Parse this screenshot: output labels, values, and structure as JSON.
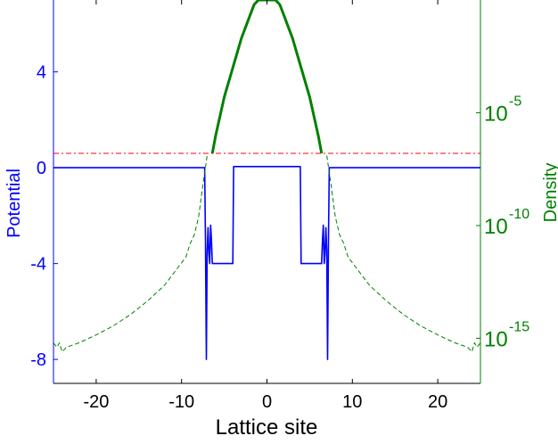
{
  "chart_data": {
    "type": "line",
    "xlabel": "Lattice site",
    "ylabel_left": "Potential",
    "ylabel_right": "Density",
    "xlim": [
      -25,
      25
    ],
    "ylim_left": [
      -9,
      7
    ],
    "ylim_right_log10": [
      -17,
      0
    ],
    "x_ticks": [
      -20,
      -10,
      0,
      10,
      20
    ],
    "x_tick_labels": [
      "-20",
      "-10",
      "0",
      "10",
      "20"
    ],
    "y_left_ticks": [
      -8,
      -4,
      0,
      4
    ],
    "y_left_tick_labels": [
      "-8",
      "-4",
      "0",
      "4"
    ],
    "y_right_ticks": [
      {
        "log10": -15,
        "base": "10",
        "exp": "-15"
      },
      {
        "log10": -10,
        "base": "10",
        "exp": "-10"
      },
      {
        "log10": -5,
        "base": "10",
        "exp": "-5"
      }
    ],
    "grid": false,
    "colors": {
      "potential": "#0000ff",
      "density": "#008000",
      "threshold": "#ff0000",
      "left_axis": "#0000ff",
      "right_axis": "#008000",
      "xlabel": "#000000"
    },
    "series": [
      {
        "axis": "left",
        "style": "solid",
        "x": [
          -25,
          -7.3,
          -7.2,
          -7.1,
          -7,
          -6.9,
          -6.8,
          -6.7,
          -6.6,
          -6.5,
          -6.4,
          -6.3,
          -4,
          -3.9,
          3.9,
          4,
          6.3,
          6.4,
          6.5,
          6.6,
          6.7,
          6.8,
          6.9,
          7,
          7.1,
          7.2,
          7.3,
          25
        ],
        "y": [
          0,
          0,
          -3.0,
          -8.0,
          -3.5,
          -2.5,
          -3.6,
          -4.0,
          -2.4,
          -3.0,
          -4.0,
          -4.0,
          -4.0,
          0.05,
          0.05,
          -4.0,
          -4.0,
          -4.0,
          -3.0,
          -2.4,
          -4.0,
          -3.6,
          -2.5,
          -3.5,
          -8.0,
          -3.0,
          0,
          0
        ]
      },
      {
        "axis": "left",
        "style": "dashdot",
        "x": [
          -25,
          25
        ],
        "y": [
          0.6,
          0.6
        ]
      },
      {
        "axis": "right",
        "style": "dashed",
        "x": [
          -25,
          -24.6,
          -24.3,
          -24,
          -23.5,
          -22,
          -20,
          -18,
          -16,
          -14,
          -12,
          -10.5,
          -9.5,
          -9,
          -8.5,
          -8,
          -7.5,
          -7
        ],
        "y_log10": [
          -15.2,
          -15.4,
          -15.2,
          -15.6,
          -15.4,
          -15.2,
          -14.85,
          -14.45,
          -13.95,
          -13.35,
          -12.65,
          -11.9,
          -11.4,
          -10.8,
          -10.4,
          -9.6,
          -8.2,
          -6.9
        ]
      },
      {
        "axis": "right",
        "style": "dashed",
        "x": [
          7,
          7.5,
          8,
          8.5,
          9,
          9.5,
          10.5,
          12,
          14,
          16,
          18,
          20,
          22,
          23.5,
          24,
          24.3,
          24.6,
          25
        ],
        "y_log10": [
          -6.9,
          -8.2,
          -9.6,
          -10.4,
          -10.8,
          -11.4,
          -11.9,
          -12.65,
          -13.35,
          -13.95,
          -14.45,
          -14.85,
          -15.2,
          -15.4,
          -15.6,
          -15.2,
          -15.4,
          -15.2
        ]
      },
      {
        "axis": "right",
        "style": "solid",
        "x": [
          -6.4,
          -6,
          -5,
          -4,
          -3,
          -2,
          -1.5,
          -1,
          -0.5,
          0,
          0.5,
          1,
          1.5,
          2,
          3,
          4,
          5,
          6,
          6.4
        ],
        "y_log10": [
          -6.8,
          -6.0,
          -4.3,
          -3.0,
          -1.7,
          -0.7,
          -0.2,
          0,
          0,
          0,
          0,
          0,
          -0.2,
          -0.7,
          -1.7,
          -3.0,
          -4.3,
          -6.0,
          -6.8
        ]
      }
    ]
  }
}
